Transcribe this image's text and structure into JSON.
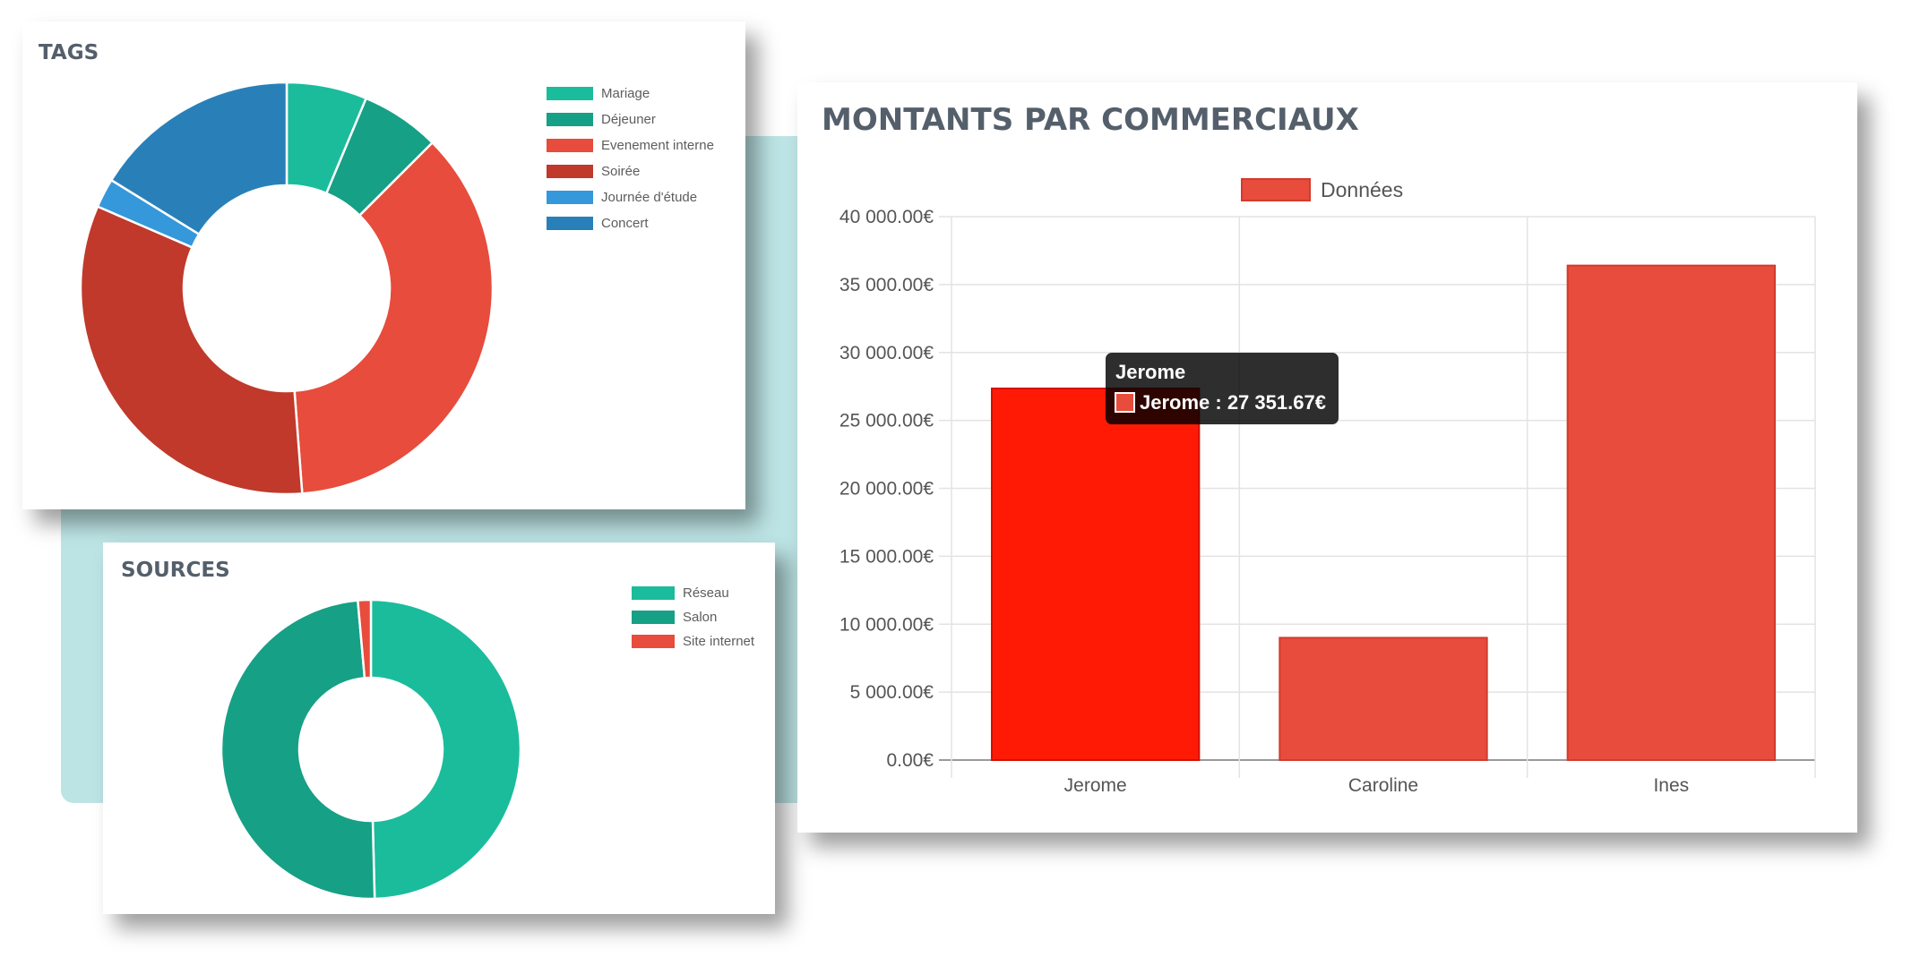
{
  "tags": {
    "title": "TAGS",
    "chart_data": {
      "type": "pie",
      "title": "TAGS",
      "labels": [
        "Mariage",
        "Déjeuner",
        "Evenement interne",
        "Soirée",
        "Journée d'étude",
        "Concert"
      ],
      "values": [
        6.3,
        6.2,
        36.3,
        32.7,
        2.3,
        16.2
      ],
      "colors": [
        "#1abc9c",
        "#16a085",
        "#e74c3c",
        "#c0392b",
        "#3498db",
        "#2980b9"
      ],
      "legend": "right"
    }
  },
  "sources": {
    "title": "SOURCES",
    "chart_data": {
      "type": "pie",
      "title": "SOURCES",
      "labels": [
        "Réseau",
        "Salon",
        "Site internet"
      ],
      "values": [
        49.6,
        49.0,
        1.4
      ],
      "colors": [
        "#1abc9c",
        "#16a085",
        "#e74c3c"
      ],
      "legend": "right"
    }
  },
  "bar": {
    "title": "MONTANTS PAR COMMERCIAUX",
    "chart_data": {
      "type": "bar",
      "title": "MONTANTS PAR COMMERCIAUX",
      "categories": [
        "Jerome",
        "Caroline",
        "Ines"
      ],
      "series": [
        {
          "name": "Données",
          "values": [
            27351.67,
            9000,
            36400
          ]
        }
      ],
      "ylim": [
        0,
        40000
      ],
      "yticks": [
        "0.00€",
        "5 000.00€",
        "10 000.00€",
        "15 000.00€",
        "20 000.00€",
        "25 000.00€",
        "30 000.00€",
        "35 000.00€",
        "40 000.00€"
      ],
      "color": "#e74c3c",
      "highlight_color": "#ff1a05",
      "highlight_index": 0,
      "grid": true,
      "legend": "top"
    },
    "tooltip": {
      "title": "Jerome",
      "body": "Jerome : 27 351.67€"
    }
  }
}
